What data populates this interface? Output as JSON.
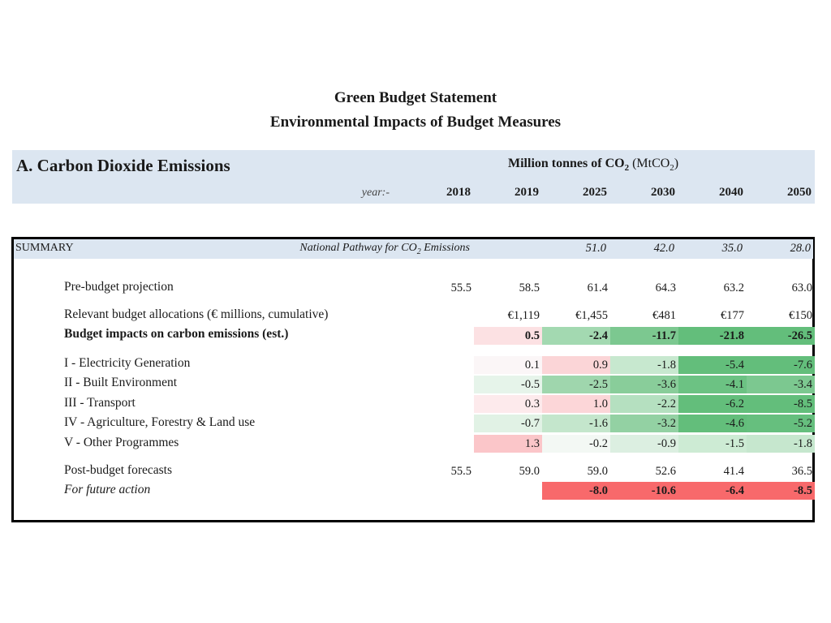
{
  "title_line1": "Green Budget Statement",
  "title_line2": "Environmental Impacts of Budget Measures",
  "section_title": "A. Carbon Dioxide Emissions",
  "units": {
    "prefix": "Million tonnes of CO",
    "sub": "2",
    "paren_open": "(MtCO",
    "paren_sub": "2",
    "paren_close": ")"
  },
  "year_label": "year:-",
  "years": [
    "2018",
    "2019",
    "2025",
    "2030",
    "2040",
    "2050"
  ],
  "summary": {
    "label": "SUMMARY",
    "pathway_prefix": "National Pathway for CO",
    "pathway_sub": "2",
    "pathway_suffix": "Emissions",
    "pathway_values": [
      "51.0",
      "42.0",
      "35.0",
      "28.0"
    ]
  },
  "rows": {
    "pre_budget": {
      "label": "Pre-budget projection",
      "values": [
        "55.5",
        "58.5",
        "61.4",
        "64.3",
        "63.2",
        "63.0"
      ]
    },
    "allocations": {
      "label": "Relevant budget allocations (€ millions, cumulative)",
      "values": [
        "€1,119",
        "€1,455",
        "€481",
        "€177",
        "€150"
      ]
    },
    "impacts": {
      "label": "Budget impacts on carbon emissions (est.)",
      "values": [
        "0.5",
        "-2.4",
        "-11.7",
        "-21.8",
        "-26.5"
      ]
    },
    "electricity": {
      "label": "I - Electricity Generation",
      "values": [
        "0.1",
        "0.9",
        "-1.8",
        "-5.4",
        "-7.6"
      ]
    },
    "built": {
      "label": "II - Built Environment",
      "values": [
        "-0.5",
        "-2.5",
        "-3.6",
        "-4.1",
        "-3.4"
      ]
    },
    "transport": {
      "label": "III - Transport",
      "values": [
        "0.3",
        "1.0",
        "-2.2",
        "-6.2",
        "-8.5"
      ]
    },
    "agriculture": {
      "label": "IV - Agriculture, Forestry & Land use",
      "values": [
        "-0.7",
        "-1.6",
        "-3.2",
        "-4.6",
        "-5.2"
      ]
    },
    "other": {
      "label": "V - Other Programmes",
      "values": [
        "1.3",
        "-0.2",
        "-0.9",
        "-1.5",
        "-1.8"
      ]
    },
    "post_budget": {
      "label": "Post-budget forecasts",
      "values": [
        "55.5",
        "59.0",
        "59.0",
        "52.6",
        "41.4",
        "36.5"
      ]
    },
    "future": {
      "label": "For future action",
      "values": [
        "-8.0",
        "-10.6",
        "-6.4",
        "-8.5"
      ]
    }
  },
  "colors": {
    "header_band": "#dce6f1",
    "green_dark": "#63be7b",
    "green_light": "#e8f4ec",
    "red_light": "#fcd9dc",
    "red_strong": "#f8696b"
  }
}
